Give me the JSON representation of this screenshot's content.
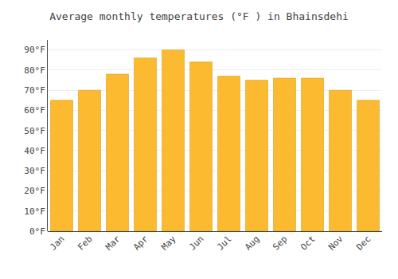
{
  "chart_data": {
    "type": "bar",
    "title": "Average monthly temperatures (°F ) in Bhainsdehi",
    "categories": [
      "Jan",
      "Feb",
      "Mar",
      "Apr",
      "May",
      "Jun",
      "Jul",
      "Aug",
      "Sep",
      "Oct",
      "Nov",
      "Dec"
    ],
    "values": [
      65,
      70,
      78,
      86,
      90,
      84,
      77,
      75,
      76,
      76,
      70,
      65
    ],
    "color": "#FCBA30",
    "ylim": [
      0,
      95
    ],
    "yticks": [
      {
        "value": 0,
        "label": "0°F"
      },
      {
        "value": 10,
        "label": "10°F"
      },
      {
        "value": 20,
        "label": "20°F"
      },
      {
        "value": 30,
        "label": "30°F"
      },
      {
        "value": 40,
        "label": "40°F"
      },
      {
        "value": 50,
        "label": "50°F"
      },
      {
        "value": 60,
        "label": "60°F"
      },
      {
        "value": 70,
        "label": "70°F"
      },
      {
        "value": 80,
        "label": "80°F"
      },
      {
        "value": 90,
        "label": "90°F"
      }
    ],
    "grid": true
  }
}
